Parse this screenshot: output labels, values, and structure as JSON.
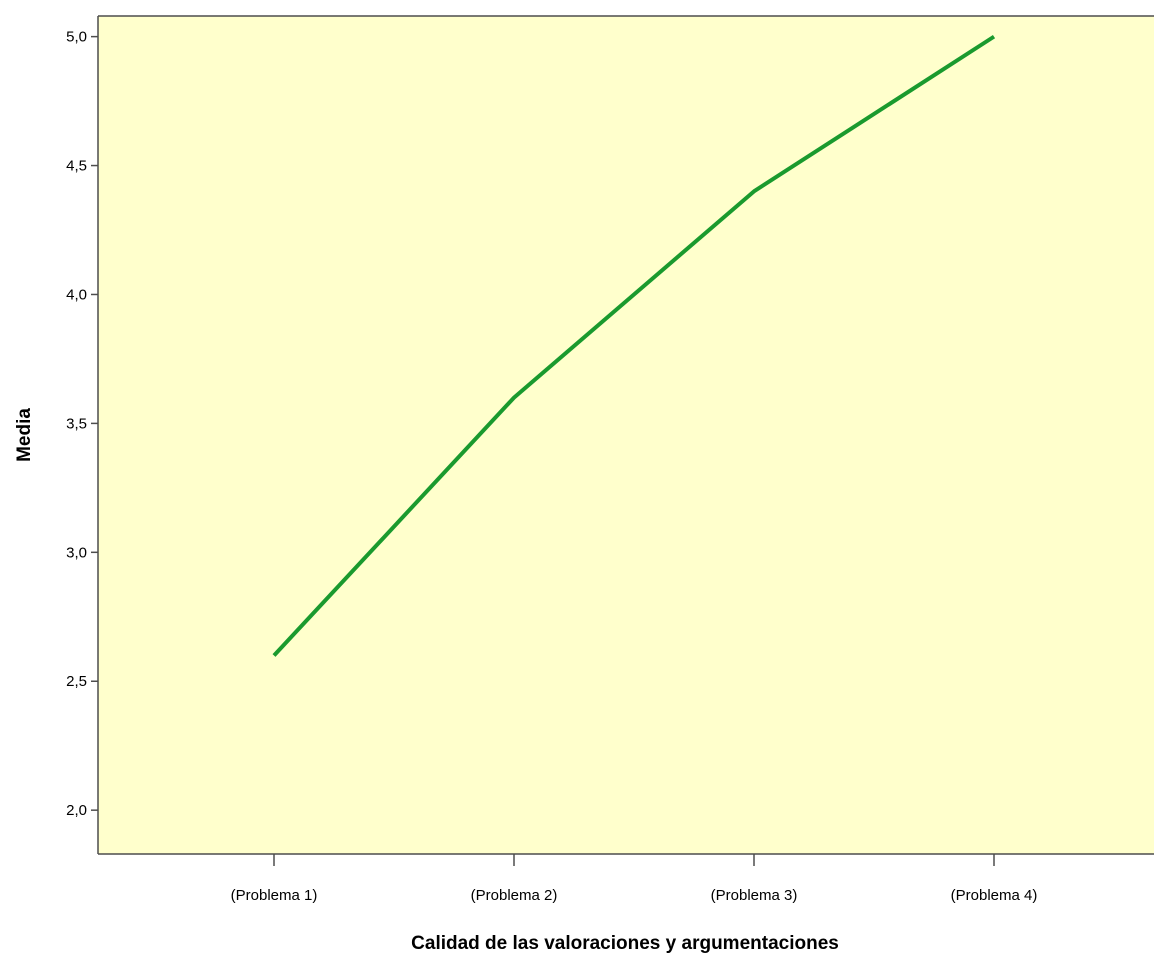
{
  "chart_data": {
    "type": "line",
    "categories": [
      "(Problema 1)",
      "(Problema 2)",
      "(Problema 3)",
      "(Problema 4)"
    ],
    "series": [
      {
        "values": [
          2.6,
          3.6,
          4.4,
          5.0
        ],
        "color": "#1a9a2e"
      }
    ],
    "xlabel": "Calidad de las valoraciones y argumentaciones",
    "ylabel": "Media",
    "ylim": [
      1.83,
      5.08
    ],
    "yticks": [
      2.0,
      2.5,
      3.0,
      3.5,
      4.0,
      4.5,
      5.0
    ],
    "ytick_labels": [
      "2,0",
      "2,5",
      "3,0",
      "3,5",
      "4,0",
      "4,5",
      "5,0"
    ],
    "plot_background": "#ffffcc",
    "axis_color": "#4d4d4d",
    "grid": false,
    "legend": "none"
  }
}
